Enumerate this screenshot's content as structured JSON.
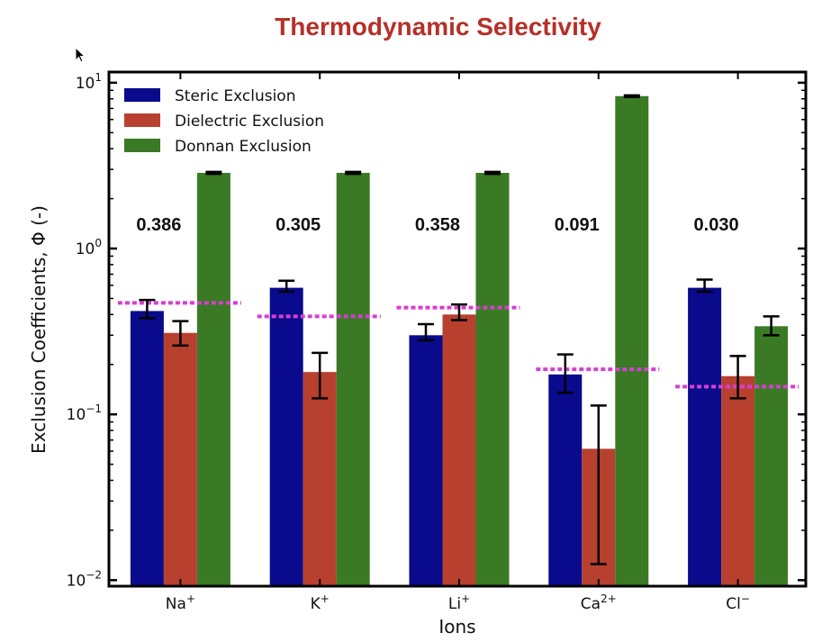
{
  "chart_data": {
    "type": "bar",
    "title": "Thermodynamic Selectivity",
    "xlabel": "Ions",
    "ylabel": "Exclusion Coefficients, Φ (-)",
    "yscale": "log",
    "ylim": [
      0.0092,
      11.6
    ],
    "yticks": [
      {
        "value": 10,
        "label_base": "10",
        "label_exp": "1"
      },
      {
        "value": 1,
        "label_base": "10",
        "label_exp": "0"
      },
      {
        "value": 0.1,
        "label_base": "10",
        "label_exp": "−1"
      },
      {
        "value": 0.01,
        "label_base": "10",
        "label_exp": "−2"
      }
    ],
    "categories": [
      {
        "base": "Na",
        "sup": "+"
      },
      {
        "base": "K",
        "sup": "+"
      },
      {
        "base": "Li",
        "sup": "+"
      },
      {
        "base": "Ca",
        "sup": "2+"
      },
      {
        "base": "Cl",
        "sup": "−"
      }
    ],
    "series": [
      {
        "name": "Steric Exclusion",
        "color": "#0a0a8c",
        "values": [
          0.42,
          0.58,
          0.3,
          0.174,
          0.58
        ],
        "err_low": [
          0.38,
          0.55,
          0.28,
          0.135,
          0.55
        ],
        "err_high": [
          0.49,
          0.64,
          0.35,
          0.23,
          0.65
        ]
      },
      {
        "name": "Dielectric Exclusion",
        "color": "#b8402f",
        "values": [
          0.31,
          0.18,
          0.4,
          0.062,
          0.17
        ],
        "err_low": [
          0.26,
          0.125,
          0.37,
          0.0125,
          0.125
        ],
        "err_high": [
          0.365,
          0.235,
          0.46,
          0.113,
          0.225
        ]
      },
      {
        "name": "Donnan Exclusion",
        "color": "#3a7a24",
        "values": [
          2.86,
          2.86,
          2.86,
          8.3,
          0.34
        ],
        "err_low": [
          2.82,
          2.82,
          2.82,
          8.2,
          0.3
        ],
        "err_high": [
          2.9,
          2.9,
          2.9,
          8.4,
          0.39
        ]
      }
    ],
    "reference_lines": {
      "color": "#d63fd0",
      "style": "dashed",
      "values": [
        0.47,
        0.39,
        0.44,
        0.187,
        0.147
      ]
    },
    "annotations": [
      "0.386",
      "0.305",
      "0.358",
      "0.091",
      "0.030"
    ],
    "legend": "top-left",
    "grid": false
  }
}
